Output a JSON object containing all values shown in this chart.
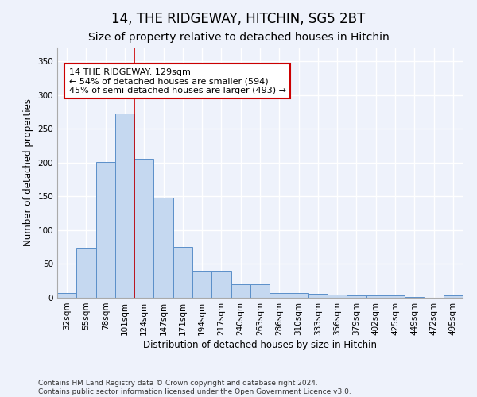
{
  "title": "14, THE RIDGEWAY, HITCHIN, SG5 2BT",
  "subtitle": "Size of property relative to detached houses in Hitchin",
  "xlabel": "Distribution of detached houses by size in Hitchin",
  "ylabel": "Number of detached properties",
  "bar_categories": [
    "32sqm",
    "55sqm",
    "78sqm",
    "101sqm",
    "124sqm",
    "147sqm",
    "171sqm",
    "194sqm",
    "217sqm",
    "240sqm",
    "263sqm",
    "286sqm",
    "310sqm",
    "333sqm",
    "356sqm",
    "379sqm",
    "402sqm",
    "425sqm",
    "449sqm",
    "472sqm",
    "495sqm"
  ],
  "bar_values": [
    7,
    74,
    201,
    272,
    205,
    148,
    75,
    40,
    40,
    20,
    20,
    7,
    7,
    6,
    5,
    4,
    3,
    3,
    1,
    0,
    3
  ],
  "bar_color": "#c5d8f0",
  "bar_edge_color": "#5b8fc9",
  "vline_color": "#cc0000",
  "annotation_text": "14 THE RIDGEWAY: 129sqm\n← 54% of detached houses are smaller (594)\n45% of semi-detached houses are larger (493) →",
  "annotation_box_color": "#ffffff",
  "annotation_box_edge_color": "#cc0000",
  "ylim": [
    0,
    370
  ],
  "yticks": [
    0,
    50,
    100,
    150,
    200,
    250,
    300,
    350
  ],
  "background_color": "#eef2fb",
  "grid_color": "#ffffff",
  "footer_line1": "Contains HM Land Registry data © Crown copyright and database right 2024.",
  "footer_line2": "Contains public sector information licensed under the Open Government Licence v3.0.",
  "title_fontsize": 12,
  "subtitle_fontsize": 10,
  "axis_label_fontsize": 8.5,
  "tick_fontsize": 7.5,
  "annotation_fontsize": 8,
  "footer_fontsize": 6.5
}
